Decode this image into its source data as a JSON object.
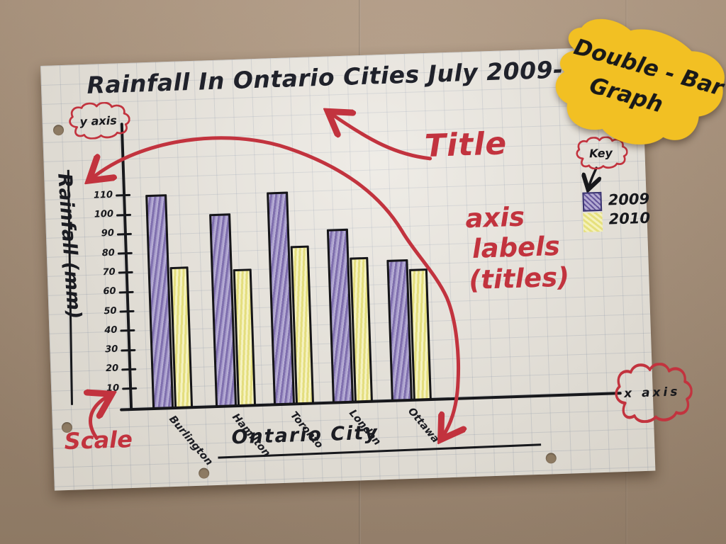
{
  "note": {
    "line1": "Double - Bar",
    "line2": "Graph"
  },
  "annotations": {
    "y_axis_cloud": "y axis",
    "x_axis_cloud": "x axis",
    "key_cloud": "Key",
    "title_callout": "Title",
    "axis_labels_lines": [
      "axis",
      "labels",
      "(titles)"
    ],
    "scale_callout": "Scale"
  },
  "chart_data": {
    "type": "bar",
    "title": "Rainfall In Ontario Cities July 2009-10",
    "categories": [
      "Burlington",
      "Hamilton",
      "Toronto",
      "London",
      "Ottawa"
    ],
    "series": [
      {
        "name": "2009",
        "color": "#9a8dc3",
        "values": [
          110,
          99,
          109,
          89,
          72
        ]
      },
      {
        "name": "2010",
        "color": "#efeb9e",
        "values": [
          72,
          70,
          81,
          74,
          67
        ]
      }
    ],
    "xlabel": "Ontario City",
    "ylabel": "Rainfall (mm)",
    "yticks": [
      10,
      20,
      30,
      40,
      50,
      60,
      70,
      80,
      90,
      100,
      110
    ],
    "ylim": [
      0,
      115
    ],
    "grid": true,
    "legend_position": "top-right"
  },
  "colors": {
    "marker_red": "#c2333e",
    "marker_black": "#17181c",
    "note_yellow": "#f2c023",
    "kraft_brown": "#ab9279",
    "paper": "#e8e4dc"
  }
}
